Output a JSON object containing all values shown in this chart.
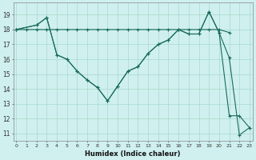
{
  "xlabel": "Humidex (Indice chaleur)",
  "background_color": "#cff0ee",
  "grid_color": "#a8d8cc",
  "line_color": "#1a6b5a",
  "line1_x": [
    0,
    1,
    2,
    3,
    4,
    5,
    6,
    7,
    8,
    9,
    10,
    11,
    12,
    13,
    14,
    15,
    16,
    17,
    18,
    19,
    20,
    21
  ],
  "line1_y": [
    18,
    18,
    18,
    18,
    18,
    18,
    18,
    18,
    18,
    18,
    18,
    18,
    18,
    18,
    18,
    18,
    18,
    18,
    18,
    18,
    18,
    17.8
  ],
  "line2_x": [
    0,
    2,
    3,
    4,
    5,
    6,
    7,
    8,
    9,
    10,
    11,
    12,
    13,
    14,
    15,
    16,
    17,
    18,
    19,
    20,
    21,
    22,
    23
  ],
  "line2_y": [
    18,
    18.3,
    18.8,
    16.3,
    16.0,
    15.2,
    14.6,
    14.1,
    13.2,
    14.2,
    15.2,
    15.5,
    16.4,
    17.0,
    17.3,
    18.0,
    17.7,
    17.7,
    19.2,
    17.8,
    16.1,
    10.9,
    11.4
  ],
  "line3_x": [
    0,
    2,
    3,
    4,
    5,
    6,
    7,
    8,
    9,
    10,
    11,
    12,
    13,
    14,
    15,
    16,
    17,
    18,
    19,
    20,
    21,
    22,
    23
  ],
  "line3_y": [
    18,
    18.3,
    18.8,
    16.3,
    16.0,
    15.2,
    14.6,
    14.1,
    13.2,
    14.2,
    15.2,
    15.5,
    16.4,
    17.0,
    17.3,
    18.0,
    17.7,
    17.7,
    19.2,
    17.8,
    12.2,
    12.2,
    11.4
  ],
  "ylim": [
    10.5,
    19.8
  ],
  "xlim": [
    -0.3,
    23.3
  ],
  "yticks": [
    11,
    12,
    13,
    14,
    15,
    16,
    17,
    18,
    19
  ],
  "xticks": [
    0,
    1,
    2,
    3,
    4,
    5,
    6,
    7,
    8,
    9,
    10,
    11,
    12,
    13,
    14,
    15,
    16,
    17,
    18,
    19,
    20,
    21,
    22,
    23
  ]
}
